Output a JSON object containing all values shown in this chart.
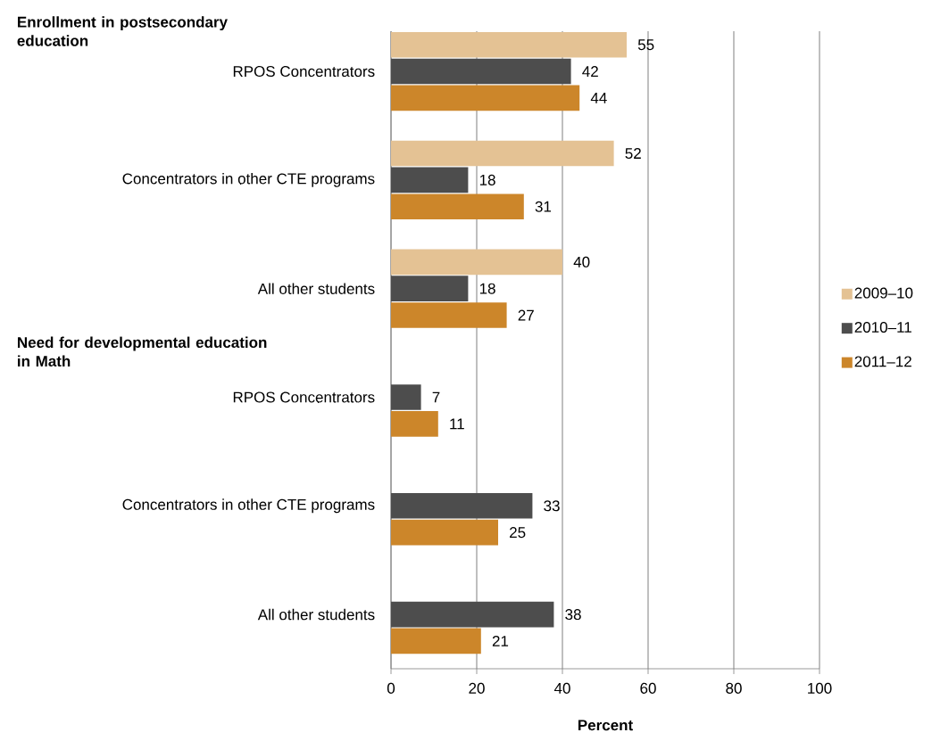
{
  "chart_data": {
    "type": "bar",
    "orientation": "horizontal",
    "categories": [
      "RPOS Concentrators",
      "Concentrators in other CTE programs",
      "All other students",
      "RPOS Concentrators",
      "Concentrators in other CTE programs",
      "All other students"
    ],
    "series": [
      {
        "name": "2009–10",
        "color": "#e4c294",
        "values": [
          55,
          52,
          40,
          null,
          null,
          null
        ]
      },
      {
        "name": "2010–11",
        "color": "#4d4d4d",
        "values": [
          42,
          18,
          18,
          7,
          33,
          38
        ]
      },
      {
        "name": "2011–12",
        "color": "#cc862a",
        "values": [
          44,
          31,
          27,
          11,
          25,
          21
        ]
      }
    ],
    "xlabel": "Percent",
    "xlim": [
      0,
      100
    ],
    "xticks": [
      0,
      20,
      40,
      60,
      80,
      100
    ],
    "grid": "x",
    "legend": "right",
    "data_labels": true,
    "annotations": [
      "Enrollment in postsecondary education",
      "Need for developmental education in Math"
    ]
  }
}
